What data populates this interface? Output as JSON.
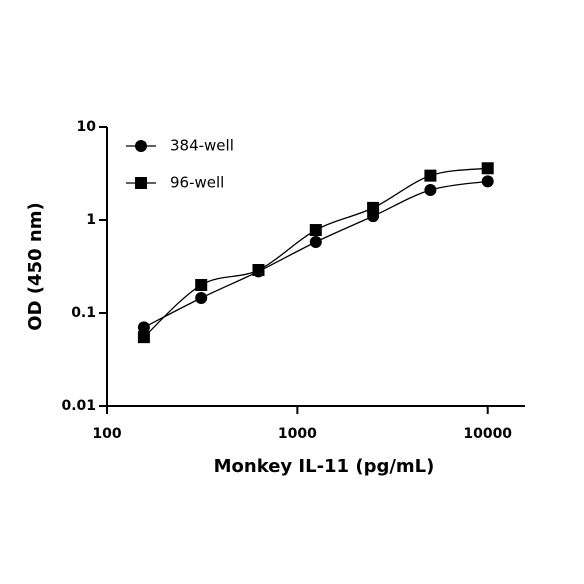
{
  "chart_data": {
    "type": "scatter",
    "x_label": "Monkey IL-11 (pg/mL)",
    "y_label": "OD (450 nm)",
    "x": [
      156.25,
      312.5,
      625,
      1250,
      2500,
      5000,
      10000
    ],
    "series": [
      {
        "name": "384-well",
        "color": "#000000",
        "marker": "circle",
        "values": [
          0.07,
          0.145,
          0.28,
          0.58,
          1.1,
          2.1,
          2.6
        ]
      },
      {
        "name": "96-well",
        "color": "#000000",
        "marker": "square",
        "values": [
          0.055,
          0.2,
          0.29,
          0.78,
          1.35,
          3.0,
          3.6
        ]
      }
    ],
    "xscale": "log",
    "yscale": "log",
    "xlim": [
      100,
      15700
    ],
    "ylim": [
      0.01,
      10
    ],
    "xticks": [
      100,
      1000,
      10000
    ],
    "yticks": [
      0.01,
      0.1,
      1,
      10
    ],
    "legend": "upper left"
  }
}
